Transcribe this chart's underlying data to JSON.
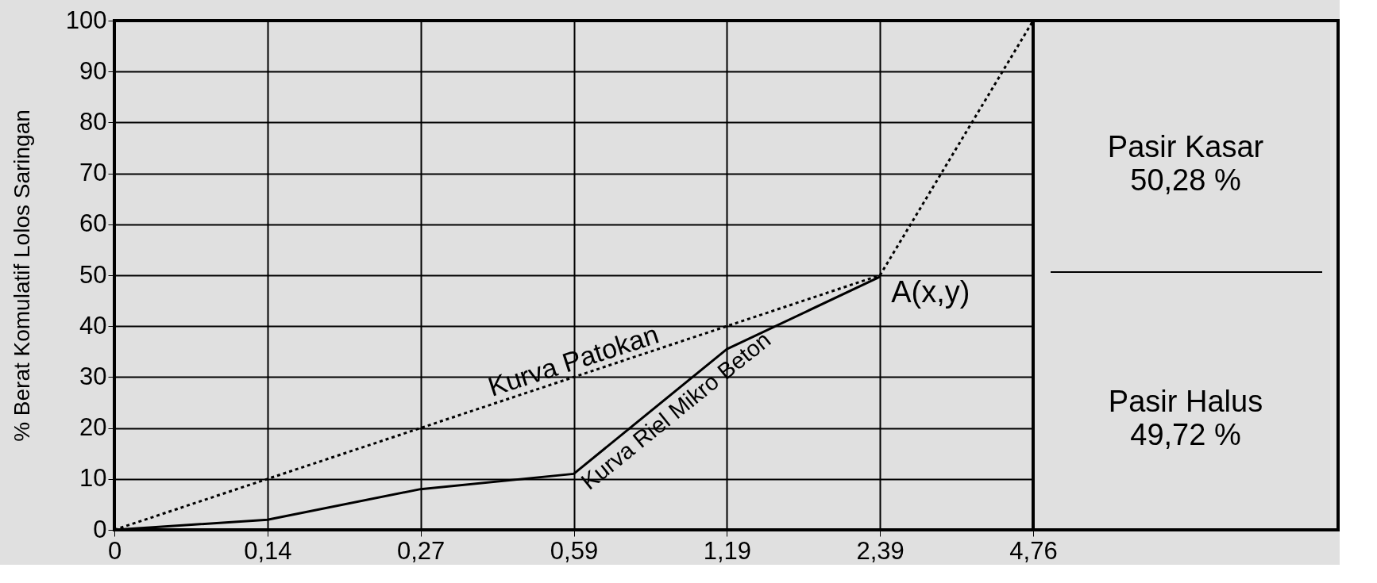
{
  "chart_data": {
    "type": "line",
    "ylabel": "% Berat Komulatif Lolos Saringan",
    "categories": [
      "0",
      "0,14",
      "0,27",
      "0,59",
      "1,19",
      "2,39",
      "4,76"
    ],
    "series": [
      {
        "name": "Kurva Patokan",
        "color": "#000000",
        "line_style": "dotted",
        "values": [
          0,
          10,
          20,
          30,
          40,
          50,
          100
        ]
      },
      {
        "name": "Kurva Riel Mikro Beton",
        "color": "#000000",
        "line_style": "solid",
        "values": [
          0,
          2,
          8,
          11,
          35.5,
          49.7,
          null
        ]
      }
    ],
    "ylim": [
      0,
      100
    ],
    "yticks": [
      0,
      10,
      20,
      30,
      40,
      50,
      60,
      70,
      80,
      90,
      100
    ],
    "grid": true,
    "marker": "none",
    "legend": false,
    "annotations": [
      {
        "text": "A(x,y)",
        "x": "2,39",
        "y": 50
      },
      "Pasir Kasar\n50,28 %",
      "Pasir Halus\n49,72 %"
    ]
  }
}
